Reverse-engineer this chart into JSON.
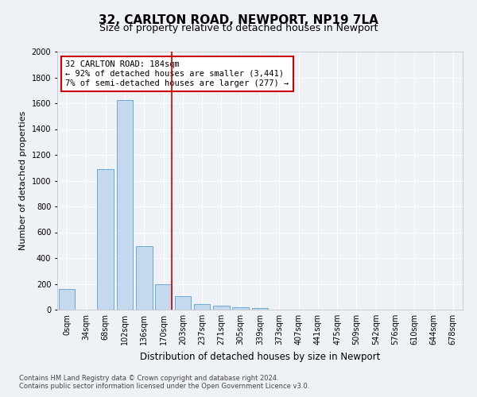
{
  "title_line1": "32, CARLTON ROAD, NEWPORT, NP19 7LA",
  "title_line2": "Size of property relative to detached houses in Newport",
  "xlabel": "Distribution of detached houses by size in Newport",
  "ylabel": "Number of detached properties",
  "bar_labels": [
    "0sqm",
    "34sqm",
    "68sqm",
    "102sqm",
    "136sqm",
    "170sqm",
    "203sqm",
    "237sqm",
    "271sqm",
    "305sqm",
    "339sqm",
    "373sqm",
    "407sqm",
    "441sqm",
    "475sqm",
    "509sqm",
    "542sqm",
    "576sqm",
    "610sqm",
    "644sqm",
    "678sqm"
  ],
  "bar_values": [
    160,
    0,
    1090,
    1625,
    490,
    200,
    105,
    45,
    30,
    20,
    15,
    0,
    0,
    0,
    0,
    0,
    0,
    0,
    0,
    0,
    0
  ],
  "bar_color": "#c5d9ee",
  "bar_edge_color": "#6aaad4",
  "ylim": [
    0,
    2000
  ],
  "yticks": [
    0,
    200,
    400,
    600,
    800,
    1000,
    1200,
    1400,
    1600,
    1800,
    2000
  ],
  "annotation_title": "32 CARLTON ROAD: 184sqm",
  "annotation_line2": "← 92% of detached houses are smaller (3,441)",
  "annotation_line3": "7% of semi-detached houses are larger (277) →",
  "annotation_box_color": "#ffffff",
  "annotation_box_edge_color": "#cc0000",
  "vline_color": "#cc0000",
  "footer_line1": "Contains HM Land Registry data © Crown copyright and database right 2024.",
  "footer_line2": "Contains public sector information licensed under the Open Government Licence v3.0.",
  "background_color": "#eef2f7",
  "grid_color": "#ffffff",
  "title_fontsize": 11,
  "subtitle_fontsize": 9,
  "tick_fontsize": 7,
  "ylabel_fontsize": 8,
  "xlabel_fontsize": 8.5,
  "annotation_fontsize": 7.5,
  "footer_fontsize": 6
}
